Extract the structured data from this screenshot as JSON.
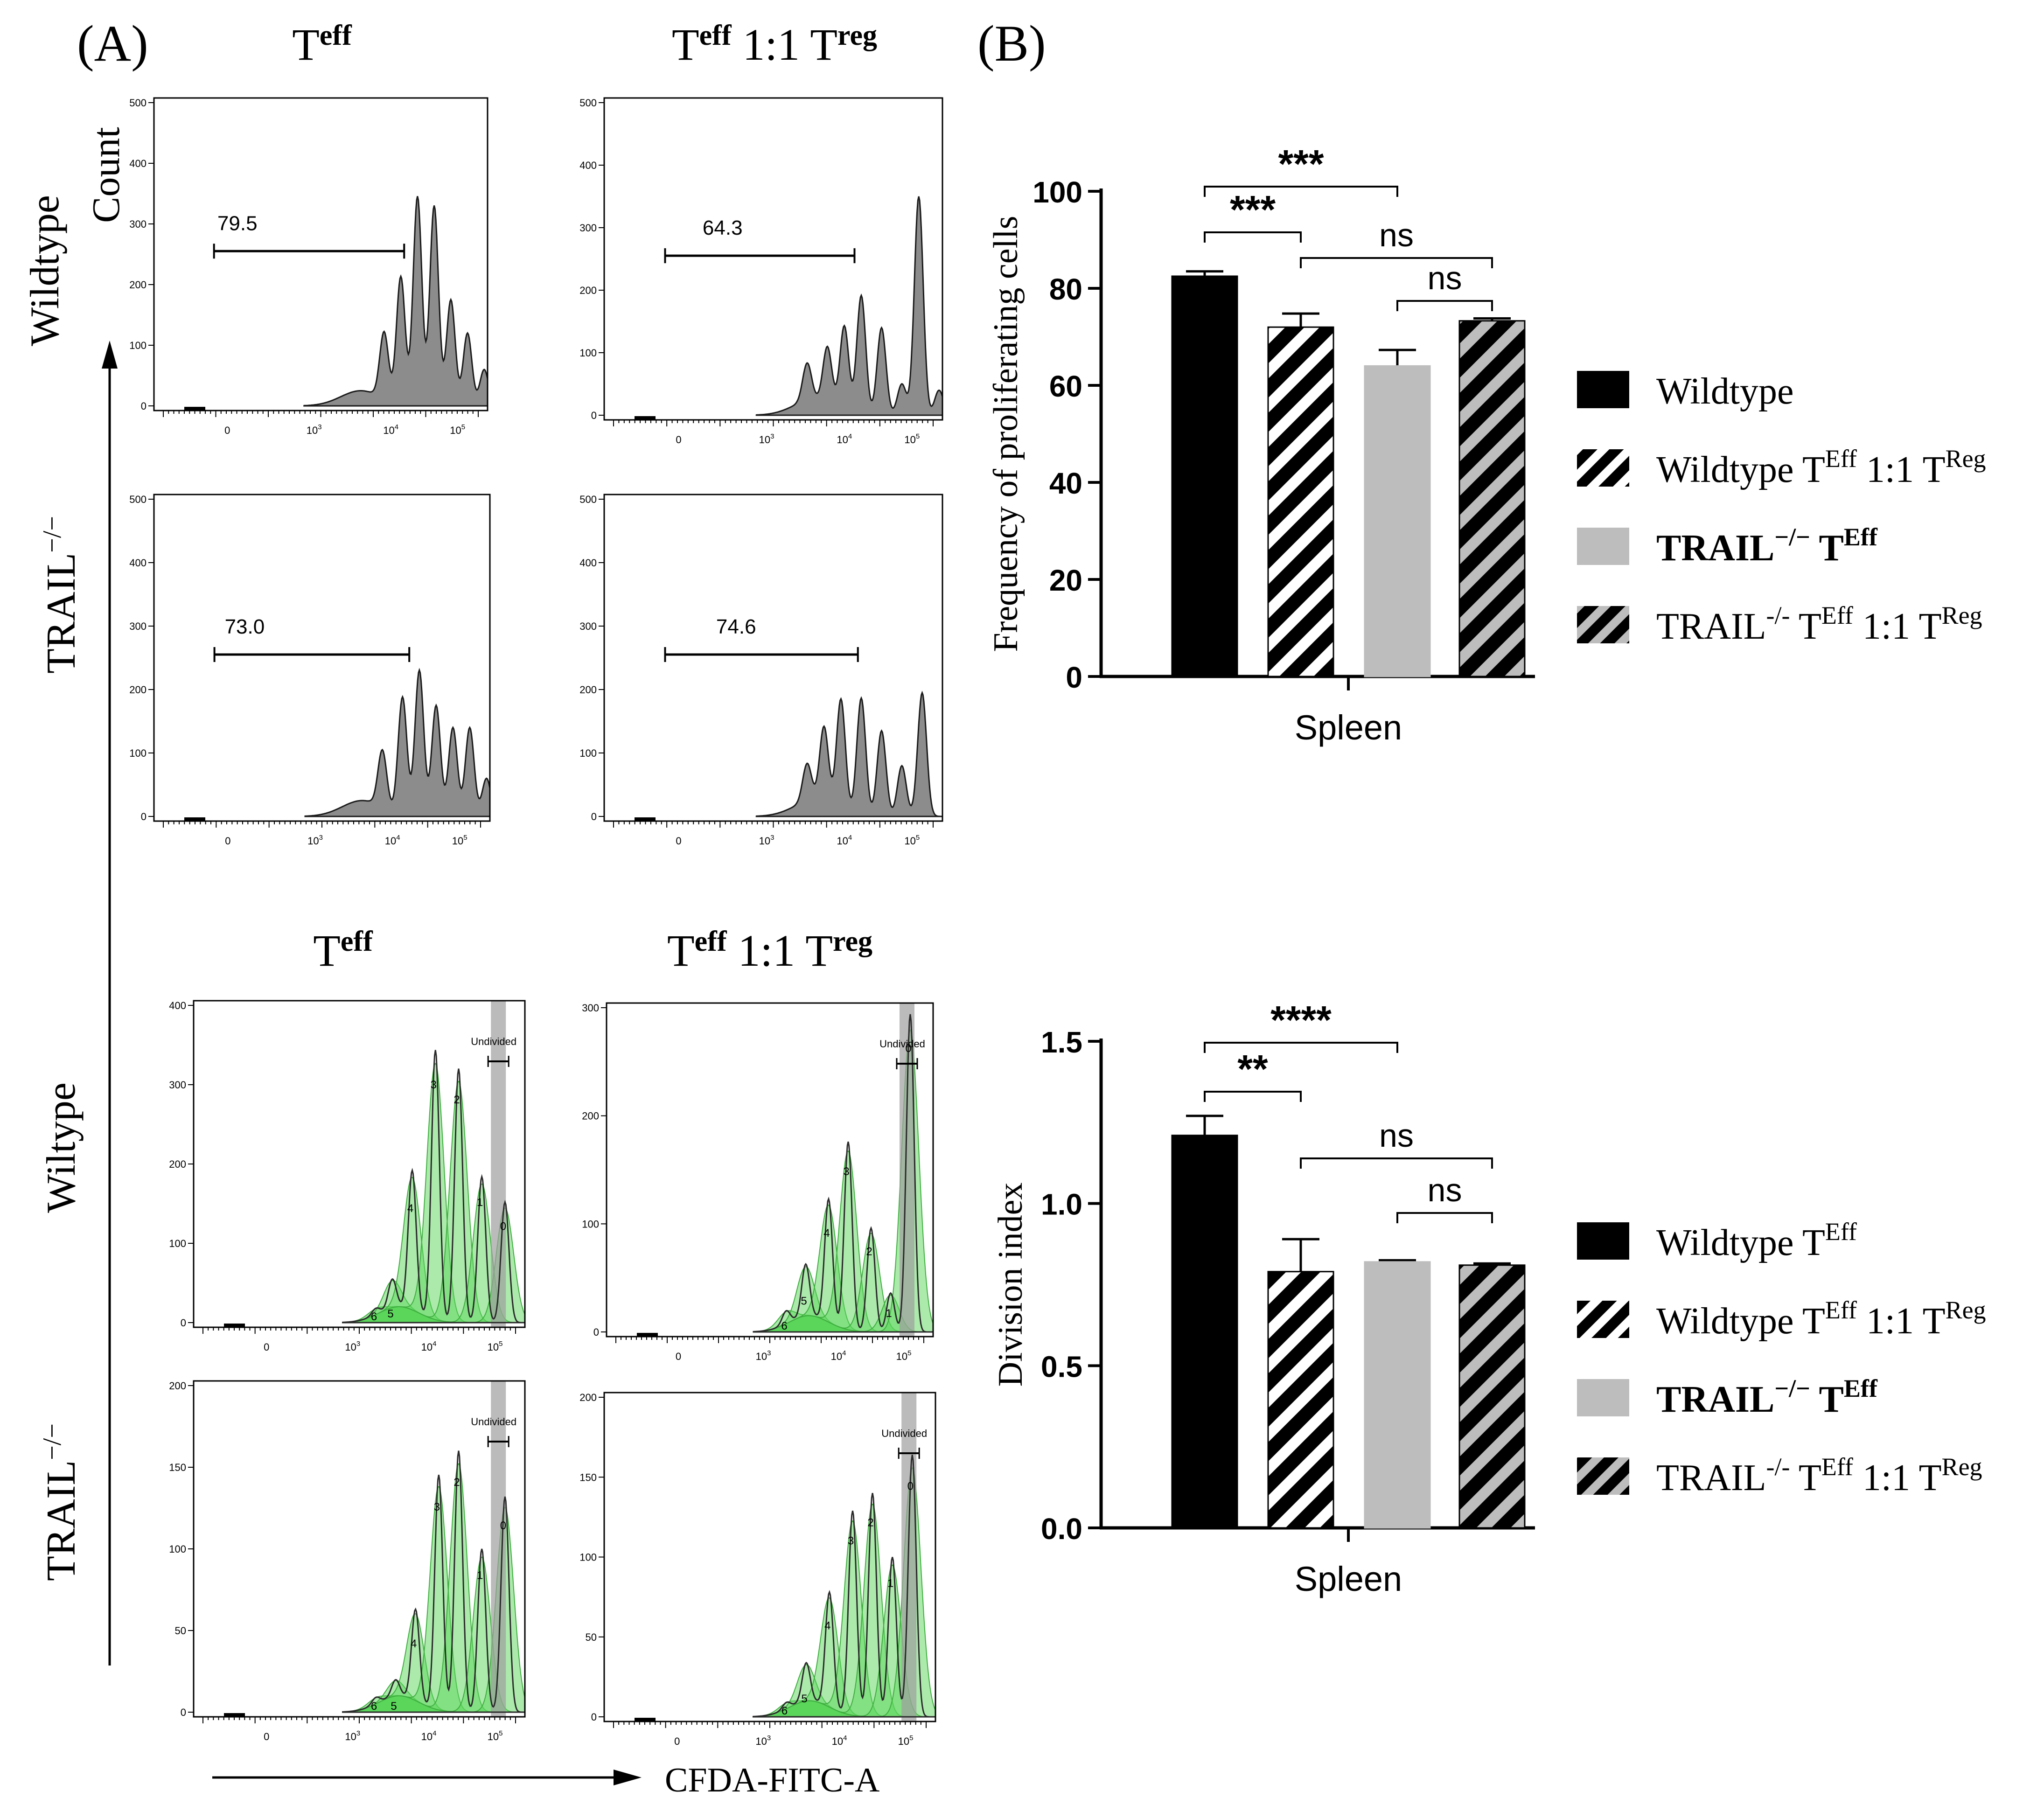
{
  "panel_a": {
    "label": "(A)",
    "x_axis_label": "CFDA-FITC-A",
    "y_axis_label": "Count",
    "top": {
      "col_titles": [
        {
          "base": "T",
          "sup": "eff",
          "mid": "",
          "base2": "",
          "sup2": ""
        },
        {
          "base": "T",
          "sup": "eff",
          "mid": " 1:1 ",
          "base2": "T",
          "sup2": "reg"
        }
      ],
      "row_labels": [
        {
          "base": "Wildtype",
          "sup": ""
        },
        {
          "base": "TRAIL",
          "sup": "−/−"
        }
      ],
      "histograms": [
        {
          "gate_value": "79.5",
          "y_ticks": [
            "0",
            "100",
            "200",
            "300",
            "400",
            "500"
          ],
          "x_ticks": [
            "0",
            "10",
            "10",
            "10"
          ],
          "x_tick_exps": [
            "",
            "3",
            "4",
            "5"
          ]
        },
        {
          "gate_value": "64.3",
          "y_ticks": [
            "0",
            "100",
            "200",
            "300",
            "400",
            "500"
          ],
          "x_ticks": [
            "0",
            "10",
            "10",
            "10"
          ],
          "x_tick_exps": [
            "",
            "3",
            "4",
            "5"
          ]
        },
        {
          "gate_value": "73.0",
          "y_ticks": [
            "0",
            "100",
            "200",
            "300",
            "400",
            "500"
          ],
          "x_ticks": [
            "0",
            "10",
            "10",
            "10"
          ],
          "x_tick_exps": [
            "",
            "3",
            "4",
            "5"
          ]
        },
        {
          "gate_value": "74.6",
          "y_ticks": [
            "0",
            "100",
            "200",
            "300",
            "400",
            "500"
          ],
          "x_ticks": [
            "0",
            "10",
            "10",
            "10"
          ],
          "x_tick_exps": [
            "",
            "3",
            "4",
            "5"
          ]
        }
      ]
    },
    "bottom": {
      "col_titles": [
        {
          "base": "T",
          "sup": "eff",
          "mid": "",
          "base2": "",
          "sup2": ""
        },
        {
          "base": "T",
          "sup": "eff",
          "mid": " 1:1 ",
          "base2": "T",
          "sup2": "reg"
        }
      ],
      "row_labels": [
        {
          "base": "Wiltype",
          "sup": ""
        },
        {
          "base": "TRAIL",
          "sup": "−/−"
        }
      ],
      "gate_label": "Undivided",
      "histograms": [
        {
          "y_ticks": [
            "0",
            "100",
            "200",
            "300",
            "400"
          ],
          "x_ticks": [
            "0",
            "10",
            "10",
            "10"
          ],
          "x_tick_exps": [
            "",
            "3",
            "4",
            "5"
          ],
          "peak_labels": [
            "6",
            "5",
            "4",
            "3",
            "2",
            "1",
            "0"
          ]
        },
        {
          "y_ticks": [
            "0",
            "100",
            "200",
            "300"
          ],
          "x_ticks": [
            "0",
            "10",
            "10",
            "10"
          ],
          "x_tick_exps": [
            "",
            "3",
            "4",
            "5"
          ],
          "peak_labels": [
            "6",
            "5",
            "4",
            "3",
            "2",
            "1",
            "0"
          ]
        },
        {
          "y_ticks": [
            "0",
            "50",
            "100",
            "150",
            "200"
          ],
          "x_ticks": [
            "0",
            "10",
            "10",
            "10"
          ],
          "x_tick_exps": [
            "",
            "3",
            "4",
            "5"
          ],
          "peak_labels": [
            "6",
            "5",
            "4",
            "3",
            "2",
            "1",
            "0"
          ]
        },
        {
          "y_ticks": [
            "0",
            "50",
            "100",
            "150",
            "200"
          ],
          "x_ticks": [
            "0",
            "10",
            "10",
            "10"
          ],
          "x_tick_exps": [
            "",
            "3",
            "4",
            "5"
          ],
          "peak_labels": [
            "6",
            "5",
            "4",
            "3",
            "2",
            "1",
            "0"
          ]
        }
      ]
    }
  },
  "panel_b": {
    "label": "(B)",
    "legend_top": [
      {
        "t1": "Wildtype",
        "s1": "",
        "t2": "",
        "s2": "",
        "t3": "",
        "s3": "",
        "bold": false,
        "fill": "black"
      },
      {
        "t1": "Wildtype T",
        "s1": "Eff",
        "t2": " 1:1 T",
        "s2": "Reg",
        "t3": "",
        "s3": "",
        "bold": false,
        "fill": "black-stripe"
      },
      {
        "t1": "TRAIL",
        "s1": "−/−",
        "t2": " T",
        "s2": "Eff",
        "t3": "",
        "s3": "",
        "bold": true,
        "fill": "gray"
      },
      {
        "t1": "TRAIL",
        "s1": "-/-",
        "t2": " T",
        "s2": "Eff",
        "t3": " 1:1 T",
        "s3": "Reg",
        "bold": false,
        "fill": "gray-stripe"
      }
    ],
    "legend_bottom": [
      {
        "t1": "Wildtype T",
        "s1": "Eff",
        "t2": "",
        "s2": "",
        "t3": "",
        "s3": "",
        "bold": false,
        "fill": "black"
      },
      {
        "t1": "Wildtype T",
        "s1": "Eff",
        "t2": " 1:1 T",
        "s2": "Reg",
        "t3": "",
        "s3": "",
        "bold": false,
        "fill": "black-stripe"
      },
      {
        "t1": "TRAIL",
        "s1": "−/−",
        "t2": " T",
        "s2": "Eff",
        "t3": "",
        "s3": "",
        "bold": true,
        "fill": "gray"
      },
      {
        "t1": "TRAIL",
        "s1": "-/-",
        "t2": " T",
        "s2": "Eff",
        "t3": " 1:1 T",
        "s3": "Reg",
        "bold": false,
        "fill": "gray-stripe"
      }
    ]
  },
  "chart_data": [
    {
      "type": "bar",
      "title": "",
      "xlabel": "Spleen",
      "ylabel": "Frequency of proliferating cells",
      "ylim": [
        0,
        100
      ],
      "yticks": [
        0,
        20,
        40,
        60,
        80,
        100
      ],
      "ytick_labels": [
        "0",
        "20",
        "40",
        "60",
        "80",
        "100"
      ],
      "categories": [
        "Wildtype",
        "Wildtype TEff 1:1 TReg",
        "TRAIL−/− TEff",
        "TRAIL-/- TEff 1:1 TReg"
      ],
      "values": [
        82.5,
        72,
        64,
        73.3
      ],
      "errors": [
        1,
        2.8,
        3.3,
        0.5
      ],
      "fills": [
        "black",
        "black-stripe",
        "gray",
        "gray-stripe"
      ],
      "significance": [
        {
          "from": 0,
          "to": 1,
          "label": "***"
        },
        {
          "from": 0,
          "to": 2,
          "label": "***"
        },
        {
          "from": 1,
          "to": 3,
          "label": "ns"
        },
        {
          "from": 2,
          "to": 3,
          "label": "ns"
        }
      ]
    },
    {
      "type": "bar",
      "title": "",
      "xlabel": "Spleen",
      "ylabel": "Division index",
      "ylim": [
        0,
        1.5
      ],
      "yticks": [
        0,
        0.5,
        1.0,
        1.5
      ],
      "ytick_labels": [
        "0.0",
        "0.5",
        "1.0",
        "1.5"
      ],
      "categories": [
        "Wildtype TEff",
        "Wildtype TEff 1:1 TReg",
        "TRAIL−/− TEff",
        "TRAIL-/- TEff 1:1 TReg"
      ],
      "values": [
        1.21,
        0.79,
        0.82,
        0.81
      ],
      "errors": [
        0.06,
        0.1,
        0.005,
        0.005
      ],
      "fills": [
        "black",
        "black-stripe",
        "gray",
        "gray-stripe"
      ],
      "significance": [
        {
          "from": 0,
          "to": 1,
          "label": "**"
        },
        {
          "from": 0,
          "to": 2,
          "label": "****"
        },
        {
          "from": 1,
          "to": 3,
          "label": "ns"
        },
        {
          "from": 2,
          "to": 3,
          "label": "ns"
        }
      ]
    }
  ]
}
